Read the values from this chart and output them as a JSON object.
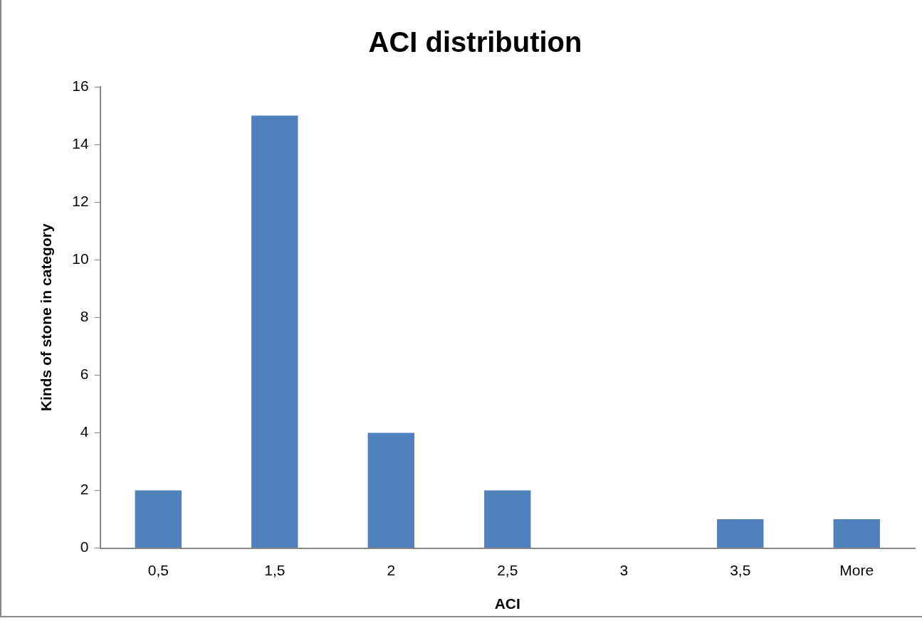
{
  "chart_data": {
    "type": "bar",
    "title": "ACI distribution",
    "xlabel": "ACI",
    "ylabel": "Kinds of stone in category",
    "categories": [
      "0,5",
      "1,5",
      "2",
      "2,5",
      "3",
      "3,5",
      "More"
    ],
    "values": [
      2,
      15,
      4,
      2,
      0,
      1,
      1
    ],
    "color": "#4f81bd",
    "ylim": [
      0,
      16
    ],
    "yticks": [
      0,
      2,
      4,
      6,
      8,
      10,
      12,
      14,
      16
    ],
    "grid": false,
    "legend": false
  }
}
